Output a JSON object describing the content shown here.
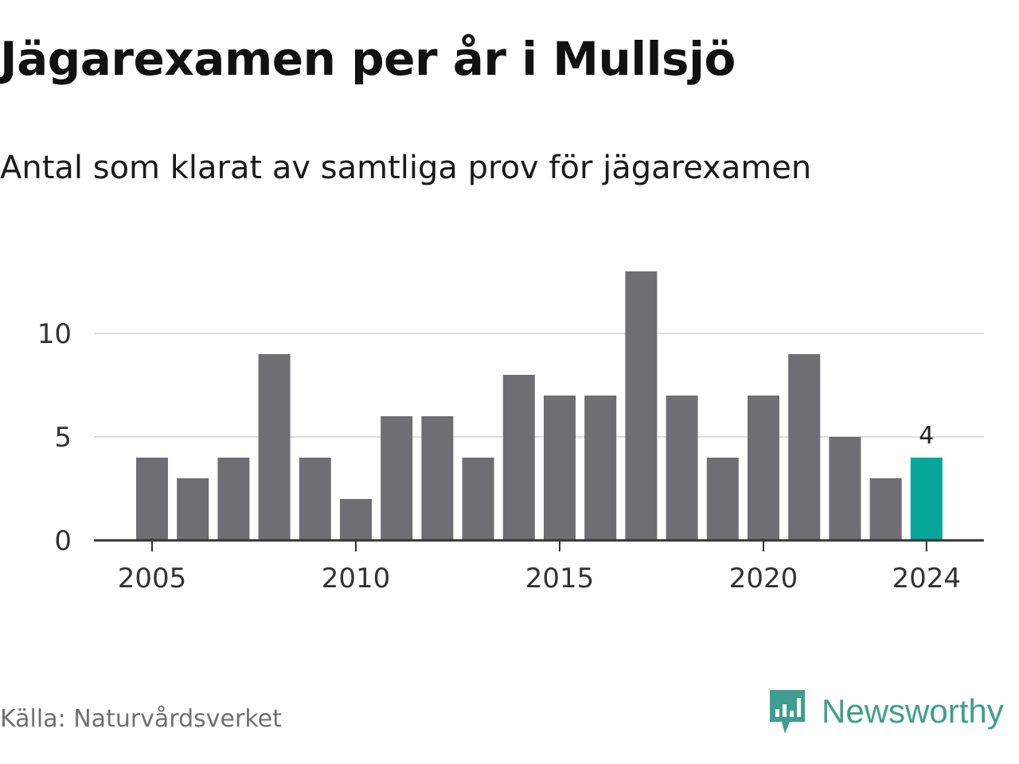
{
  "title": "Jägarexamen per år i Mullsjö",
  "subtitle": "Antal som klarat av samtliga prov för jägarexamen",
  "source": "Källa: Naturvårdsverket",
  "brand": {
    "name": "Newsworthy",
    "icon": "newsworthy-logo-icon",
    "color": "#3e9e8f"
  },
  "colors": {
    "bar": "#6f6e73",
    "highlight": "#06a79a",
    "grid": "#dddddd",
    "axis": "#333333"
  },
  "chart_data": {
    "type": "bar",
    "title": "Jägarexamen per år i Mullsjö",
    "subtitle": "Antal som klarat av samtliga prov för jägarexamen",
    "xlabel": "",
    "ylabel": "",
    "categories": [
      2005,
      2006,
      2007,
      2008,
      2009,
      2010,
      2011,
      2012,
      2013,
      2014,
      2015,
      2016,
      2017,
      2018,
      2019,
      2020,
      2021,
      2022,
      2023,
      2024
    ],
    "values": [
      4,
      3,
      4,
      9,
      4,
      2,
      6,
      6,
      4,
      8,
      7,
      7,
      13,
      7,
      4,
      7,
      9,
      5,
      3,
      4
    ],
    "x_tick_labels": [
      "2005",
      "2010",
      "2015",
      "2020",
      "2024"
    ],
    "y_ticks": [
      0,
      5,
      10
    ],
    "ylim": [
      0,
      13
    ],
    "grid": true,
    "highlight": {
      "category": 2024,
      "label": "4"
    }
  }
}
